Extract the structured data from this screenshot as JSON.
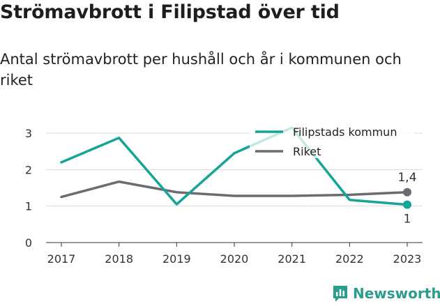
{
  "title": "Strömavbrott i Filipstad över tid",
  "subtitle": "Antal strömavbrott per hushåll och år i kommunen och riket",
  "brand": {
    "name": "Newsworthy",
    "icon": "newsworthy-logo-icon"
  },
  "colors": {
    "kommun": "#15a597",
    "riket": "#6d6b72",
    "grid": "#d9d9d9",
    "axis": "#333333"
  },
  "chart_data": {
    "type": "line",
    "categories": [
      "2017",
      "2018",
      "2019",
      "2020",
      "2021",
      "2022",
      "2023"
    ],
    "series": [
      {
        "name": "Filipstads kommun",
        "values": [
          2.2,
          2.87,
          1.05,
          2.45,
          3.15,
          1.17,
          1.04
        ],
        "end_label": "1"
      },
      {
        "name": "Riket",
        "values": [
          1.25,
          1.67,
          1.38,
          1.28,
          1.28,
          1.31,
          1.38
        ],
        "end_label": "1,4"
      }
    ],
    "yticks": [
      "0",
      "1",
      "2",
      "3"
    ],
    "ylim": [
      0,
      3
    ],
    "grid": true,
    "legend": "top-right"
  }
}
